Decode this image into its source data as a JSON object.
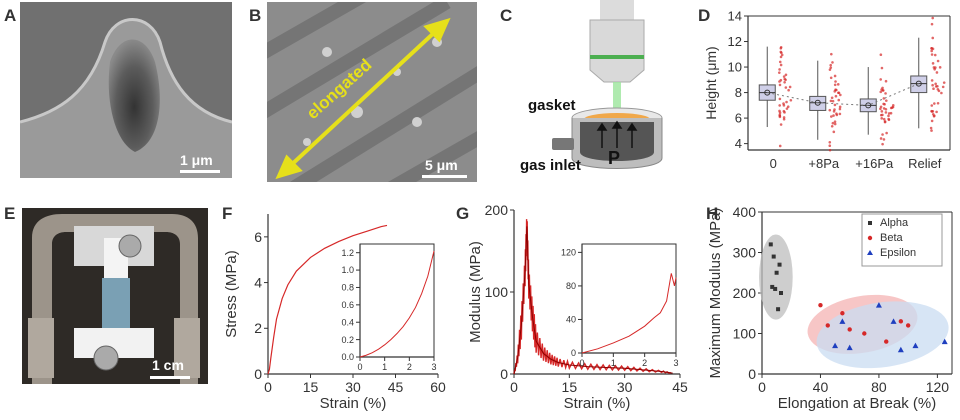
{
  "panels": {
    "A": {
      "label": "A",
      "scalebar": "1 μm"
    },
    "B": {
      "label": "B",
      "scalebar": "5 μm",
      "arrow_text": "elongated"
    },
    "C": {
      "label": "C",
      "gasket": "gasket",
      "gas_inlet": "gas inlet",
      "pressure": "P"
    },
    "D": {
      "label": "D"
    },
    "E": {
      "label": "E",
      "scalebar": "1 cm"
    },
    "F": {
      "label": "F"
    },
    "G": {
      "label": "G"
    },
    "H": {
      "label": "H"
    }
  },
  "colors": {
    "accent_red": "#d62828",
    "box_fill": "#cfcfe8",
    "alpha_fill": "#bdbdbd",
    "beta_fill": "#f4b3b3",
    "epsilon_fill": "#c9dcf2",
    "arrow_yellow": "#e6e01a"
  },
  "chart_data": [
    {
      "id": "D",
      "type": "box",
      "ylabel": "Height (μm)",
      "ylim": [
        3.5,
        14
      ],
      "yticks": [
        "4",
        "6",
        "8",
        "10",
        "12",
        "14"
      ],
      "categories": [
        "0",
        "+8Pa",
        "+16Pa",
        "Relief"
      ],
      "medians": [
        8.0,
        7.2,
        7.0,
        8.7
      ],
      "q1": [
        7.4,
        6.6,
        6.5,
        8.0
      ],
      "q3": [
        8.6,
        7.7,
        7.5,
        9.3
      ],
      "whisker_low": [
        5.3,
        4.3,
        4.7,
        5.2
      ],
      "whisker_high": [
        11.6,
        10.5,
        10.0,
        12.3
      ],
      "means": [
        8.0,
        7.2,
        7.0,
        8.7
      ]
    },
    {
      "id": "F",
      "type": "line",
      "xlabel": "Strain (%)",
      "ylabel": "Stress (MPa)",
      "xlim": [
        0,
        60
      ],
      "ylim": [
        0,
        7
      ],
      "xticks": [
        "0",
        "15",
        "30",
        "45",
        "60"
      ],
      "yticks": [
        "0",
        "2",
        "4",
        "6"
      ],
      "x": [
        0,
        0.5,
        1,
        2,
        3,
        5,
        7,
        10,
        15,
        20,
        25,
        30,
        35,
        40,
        42
      ],
      "y": [
        0,
        0.2,
        0.7,
        1.6,
        2.4,
        3.3,
        3.9,
        4.5,
        5.1,
        5.5,
        5.8,
        6.05,
        6.25,
        6.45,
        6.5
      ],
      "inset": {
        "xlim": [
          0,
          3
        ],
        "ylim": [
          0,
          1.3
        ],
        "xticks": [
          "0",
          "1",
          "2",
          "3"
        ],
        "yticks": [
          "0.0",
          "0.2",
          "0.4",
          "0.6",
          "0.8",
          "1.0",
          "1.2"
        ],
        "x": [
          0,
          0.25,
          0.5,
          0.75,
          1,
          1.25,
          1.5,
          1.75,
          2,
          2.25,
          2.5,
          2.75,
          3
        ],
        "y": [
          0,
          0.02,
          0.05,
          0.09,
          0.14,
          0.2,
          0.27,
          0.35,
          0.45,
          0.57,
          0.73,
          0.93,
          1.22
        ]
      }
    },
    {
      "id": "G",
      "type": "line",
      "xlabel": "Strain (%)",
      "ylabel": "Modulus (MPa)",
      "xlim": [
        0,
        45
      ],
      "ylim": [
        0,
        200
      ],
      "xticks": [
        "0",
        "15",
        "30",
        "45"
      ],
      "yticks": [
        "0",
        "100",
        "200"
      ],
      "x": [
        0,
        1,
        2,
        3,
        3.5,
        4,
        5,
        6,
        8,
        10,
        12,
        15,
        20,
        25,
        30,
        35,
        40,
        43
      ],
      "y": [
        0,
        20,
        60,
        125,
        180,
        110,
        70,
        40,
        25,
        18,
        14,
        11,
        9,
        8,
        7,
        5,
        3,
        1
      ],
      "inset": {
        "xlim": [
          0,
          3
        ],
        "ylim": [
          0,
          130
        ],
        "xticks": [
          "0",
          "1",
          "2",
          "3"
        ],
        "yticks": [
          "0",
          "40",
          "80",
          "120"
        ],
        "x": [
          0,
          0.5,
          1,
          1.5,
          2,
          2.3,
          2.5,
          2.7,
          2.85,
          2.95,
          3
        ],
        "y": [
          0,
          5,
          12,
          20,
          32,
          42,
          48,
          62,
          95,
          80,
          90
        ]
      }
    },
    {
      "id": "H",
      "type": "scatter",
      "xlabel": "Elongation at Break (%)",
      "ylabel": "Maximum Modulus (MPa)",
      "xlim": [
        0,
        130
      ],
      "ylim": [
        0,
        400
      ],
      "xticks": [
        "0",
        "40",
        "80",
        "120"
      ],
      "yticks": [
        "0",
        "100",
        "200",
        "300",
        "400"
      ],
      "legend_position": "top-right",
      "series": [
        {
          "name": "Alpha",
          "marker": "square",
          "color": "#333333",
          "x": [
            6,
            8,
            10,
            12,
            13,
            9,
            7,
            11
          ],
          "y": [
            320,
            290,
            250,
            270,
            200,
            210,
            215,
            160
          ]
        },
        {
          "name": "Beta",
          "marker": "circle",
          "color": "#d62828",
          "x": [
            40,
            45,
            55,
            60,
            70,
            85,
            95,
            100
          ],
          "y": [
            170,
            120,
            150,
            110,
            100,
            80,
            130,
            120
          ]
        },
        {
          "name": "Epsilon",
          "marker": "triangle",
          "color": "#1f3fbf",
          "x": [
            50,
            55,
            60,
            80,
            90,
            95,
            105,
            125
          ],
          "y": [
            70,
            130,
            65,
            170,
            130,
            60,
            70,
            80
          ]
        }
      ]
    }
  ]
}
